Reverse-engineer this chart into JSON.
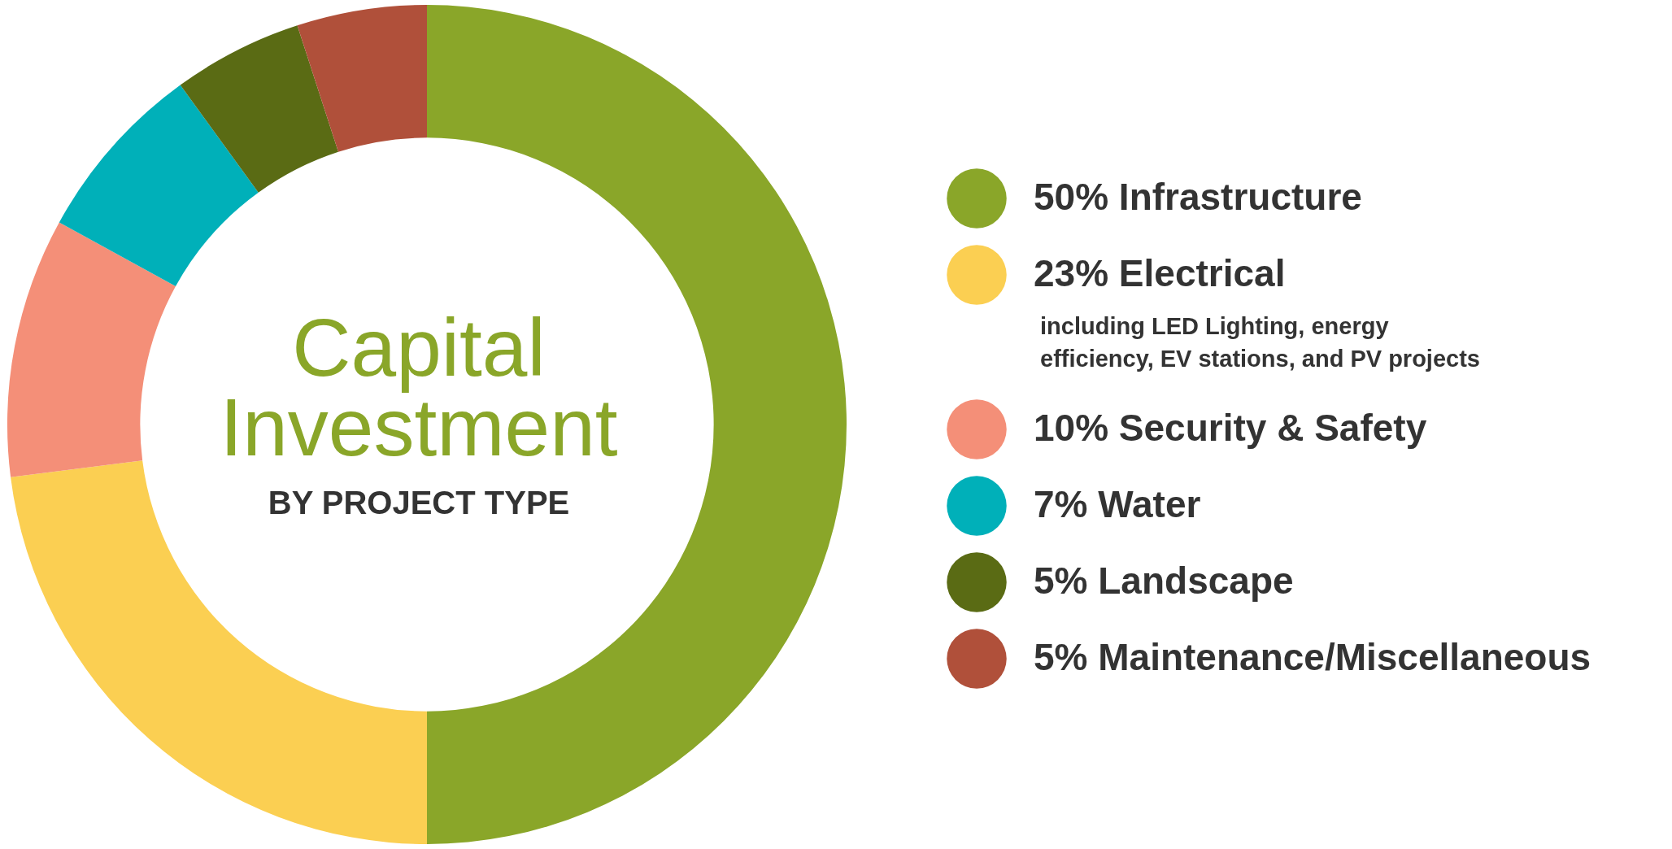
{
  "chart_data": {
    "type": "donut",
    "title": "Capital Investment",
    "subtitle": "BY PROJECT TYPE",
    "categories": [
      "Infrastructure",
      "Electrical",
      "Security & Safety",
      "Water",
      "Landscape",
      "Maintenance/Miscellaneous"
    ],
    "values": [
      50,
      23,
      10,
      7,
      5,
      5
    ],
    "value_labels": [
      "50%",
      "23%",
      "10%",
      "7%",
      "5%",
      "5%"
    ],
    "colors": [
      "#8aa629",
      "#fbcf52",
      "#f48f78",
      "#00b0b9",
      "#5a6b14",
      "#b0503a"
    ],
    "annotations": [
      "including LED Lighting, energy efficiency, EV stations, and PV projects"
    ],
    "legend": "right"
  }
}
